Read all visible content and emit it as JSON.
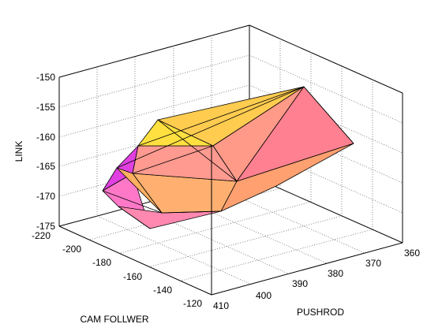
{
  "chart_data": {
    "type": "surface3d",
    "title": "",
    "axes": {
      "x": {
        "label": "CAM FOLLWER",
        "range": [
          -220,
          -120
        ],
        "ticks": [
          "-220",
          "-200",
          "-180",
          "-160",
          "-140",
          "-120"
        ]
      },
      "y": {
        "label": "PUSHROD",
        "range": [
          360,
          410
        ],
        "ticks": [
          "410",
          "400",
          "390",
          "380",
          "370",
          "360"
        ]
      },
      "z": {
        "label": "LINK",
        "range": [
          -175,
          -150
        ],
        "ticks": [
          "-150",
          "-155",
          "-160",
          "-165",
          "-170",
          "-175"
        ]
      }
    },
    "grid": true,
    "box": true,
    "colormap": [
      "#ff80ff",
      "#ff9090",
      "#ffa060",
      "#ffd040",
      "#ffff40"
    ],
    "surface": "closed convex hull (triangulated) with orange-pink-magenta-yellow shading"
  }
}
